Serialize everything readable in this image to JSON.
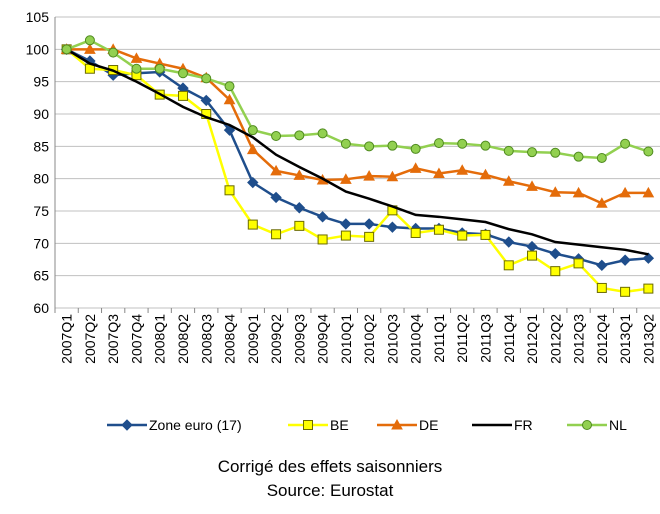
{
  "chart_data": {
    "type": "line",
    "categories": [
      "2007Q1",
      "2007Q2",
      "2007Q3",
      "2007Q4",
      "2008Q1",
      "2008Q2",
      "2008Q3",
      "2008Q4",
      "2009Q1",
      "2009Q2",
      "2009Q3",
      "2009Q4",
      "2010Q1",
      "2010Q2",
      "2010Q3",
      "2010Q4",
      "2011Q1",
      "2011Q2",
      "2011Q3",
      "2011Q4",
      "2012Q1",
      "2012Q2",
      "2012Q3",
      "2012Q4",
      "2013Q1",
      "2013Q2"
    ],
    "series": [
      {
        "name": "Zone euro (17)",
        "color": "#1f4e8c",
        "marker": "diamond",
        "values": [
          100,
          98.2,
          96,
          96.3,
          96.5,
          94,
          92.1,
          87.5,
          79.4,
          77.1,
          75.5,
          74.1,
          73,
          73,
          72.5,
          72.3,
          72.3,
          71.6,
          71.4,
          70.2,
          69.5,
          68.4,
          67.6,
          66.6,
          67.4,
          67.7
        ]
      },
      {
        "name": "BE",
        "color": "#ffff00",
        "marker": "square",
        "values": [
          100,
          97,
          96.8,
          96,
          93,
          92.8,
          90,
          78.2,
          72.9,
          71.4,
          72.7,
          70.6,
          71.2,
          71,
          75.1,
          71.6,
          72.1,
          71.2,
          71.3,
          66.6,
          68.1,
          65.7,
          66.9,
          63.1,
          62.5,
          63
        ]
      },
      {
        "name": "DE",
        "color": "#e46c0a",
        "marker": "triangle",
        "values": [
          100,
          100,
          100,
          98.6,
          97.8,
          97,
          95.6,
          92.2,
          84.5,
          81.2,
          80.5,
          79.8,
          79.9,
          80.4,
          80.3,
          81.6,
          80.8,
          81.3,
          80.6,
          79.6,
          78.8,
          77.9,
          77.8,
          76.2,
          77.8,
          77.8
        ]
      },
      {
        "name": "FR",
        "color": "#000000",
        "marker": "none",
        "values": [
          100,
          97.8,
          96.7,
          95,
          93.1,
          91.1,
          89.5,
          88.3,
          86.4,
          83.7,
          81.8,
          80,
          78,
          76.9,
          75.7,
          74.4,
          74.1,
          73.7,
          73.3,
          72.2,
          71.4,
          70.2,
          69.8,
          69.4,
          69,
          68.3
        ]
      },
      {
        "name": "NL",
        "color": "#92d050",
        "marker": "circle",
        "values": [
          100,
          101.4,
          99.5,
          97,
          97,
          96.3,
          95.5,
          94.3,
          87.5,
          86.6,
          86.7,
          87,
          85.4,
          85,
          85.1,
          84.6,
          85.5,
          85.4,
          85.1,
          84.3,
          84.1,
          84,
          83.4,
          83.2,
          85.4,
          84.2
        ]
      }
    ],
    "ylim": [
      60,
      105
    ],
    "yticks": [
      60,
      65,
      70,
      75,
      80,
      85,
      90,
      95,
      100,
      105
    ],
    "grid": true,
    "notes": [
      "Corrigé des effets saisonniers",
      "Source: Eurostat"
    ]
  }
}
